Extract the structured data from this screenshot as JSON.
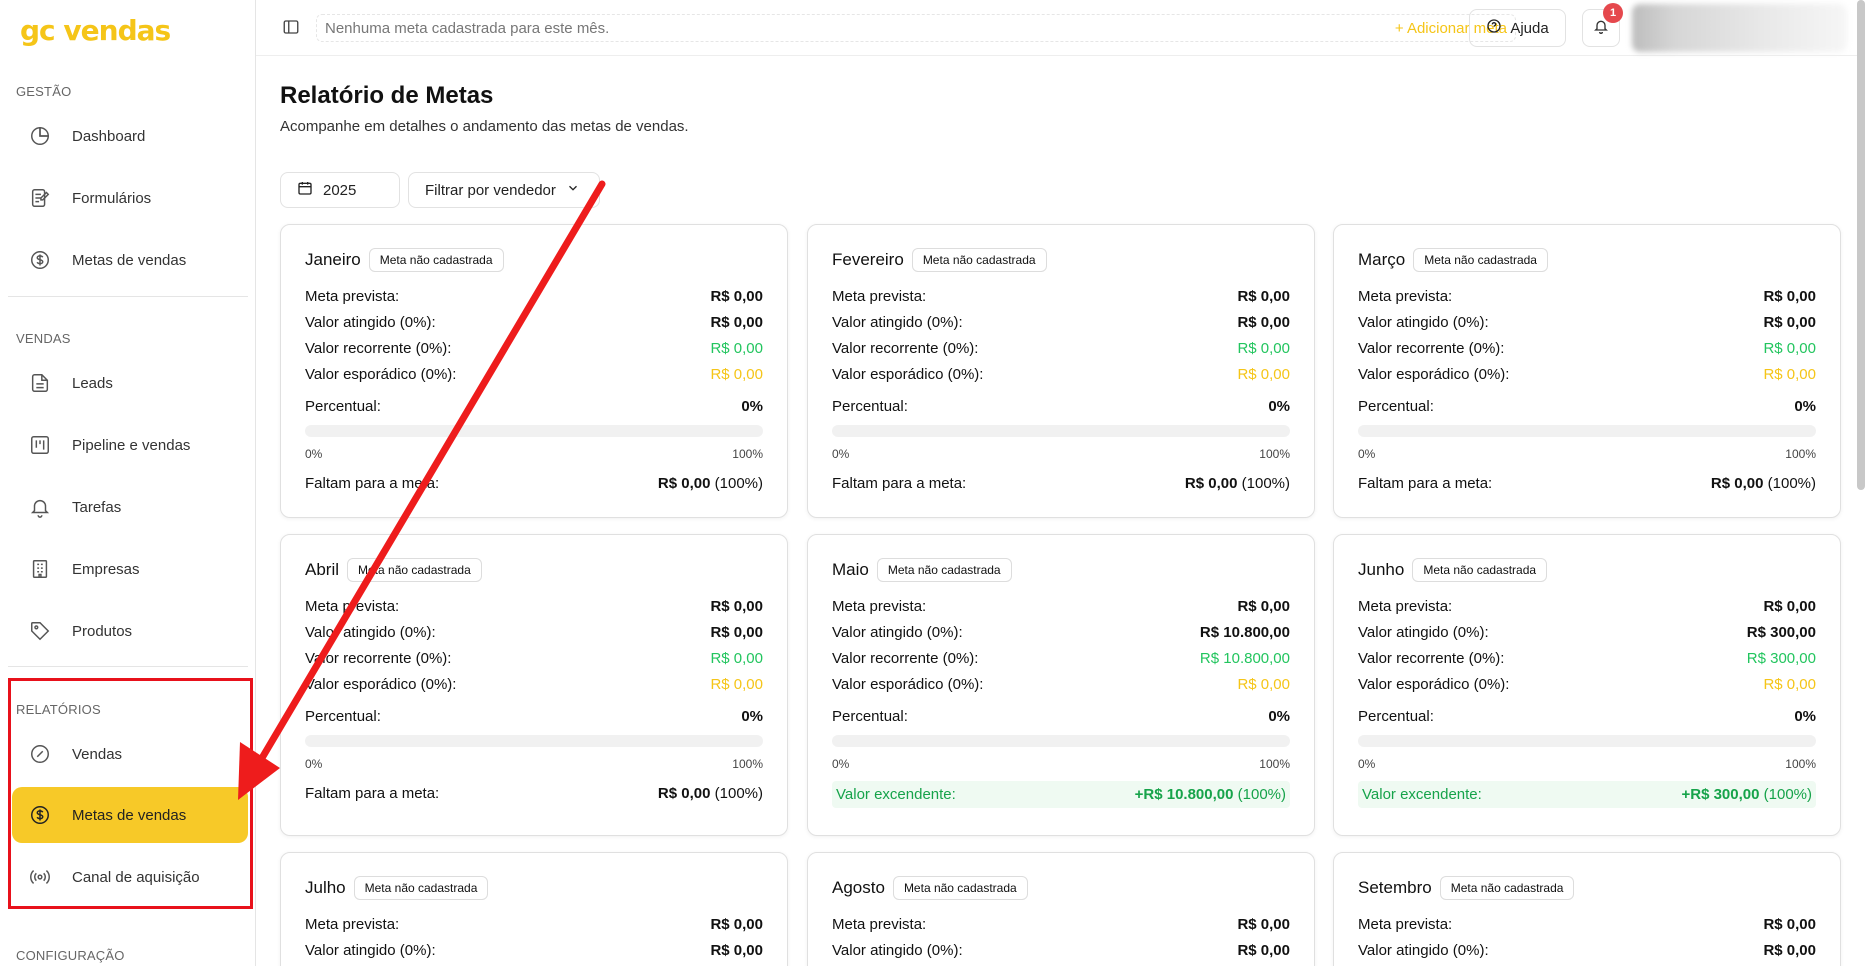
{
  "brand": "gc vendas",
  "sidebar": {
    "sections": [
      {
        "label": "GESTÃO"
      },
      {
        "label": "VENDAS"
      },
      {
        "label": "RELATÓRIOS"
      },
      {
        "label": "CONFIGURAÇÃO"
      }
    ],
    "items": [
      {
        "label": "Dashboard",
        "icon": "pie-chart-icon"
      },
      {
        "label": "Formulários",
        "icon": "form-icon"
      },
      {
        "label": "Metas de vendas",
        "icon": "dollar-circle-icon"
      },
      {
        "label": "Leads",
        "icon": "document-icon"
      },
      {
        "label": "Pipeline e vendas",
        "icon": "kanban-icon"
      },
      {
        "label": "Tarefas",
        "icon": "bell-icon"
      },
      {
        "label": "Empresas",
        "icon": "building-icon"
      },
      {
        "label": "Produtos",
        "icon": "tag-icon"
      },
      {
        "label": "Vendas",
        "icon": "gauge-icon"
      },
      {
        "label": "Metas de vendas",
        "icon": "dollar-circle-icon"
      },
      {
        "label": "Canal de aquisição",
        "icon": "broadcast-icon"
      }
    ]
  },
  "header": {
    "banner_message": "Nenhuma meta cadastrada para este mês.",
    "add_goal": "+ Adicionar meta",
    "help": "Ajuda",
    "notification_count": "1"
  },
  "page": {
    "title": "Relatório de Metas",
    "subtitle": "Acompanhe em detalhes o andamento das metas de vendas.",
    "year": "2025",
    "seller_filter": "Filtrar por vendedor"
  },
  "labels": {
    "badge": "Meta não cadastrada",
    "meta_prevista": "Meta prevista:",
    "valor_atingido": "Valor atingido (0%):",
    "valor_recorrente": "Valor recorrente (0%):",
    "valor_esporadico": "Valor esporádico (0%):",
    "percentual": "Percentual:",
    "bar_min": "0%",
    "bar_max": "100%",
    "faltam": "Faltam para a meta:",
    "excedente": "Valor excendente:"
  },
  "cards": [
    {
      "month": "Janeiro",
      "meta": "R$ 0,00",
      "atingido": "R$ 0,00",
      "recorrente": "R$ 0,00",
      "esporadico": "R$ 0,00",
      "percentual": "0%",
      "progress": 0,
      "remain_value": "R$ 0,00",
      "remain_pct": "(100%)"
    },
    {
      "month": "Fevereiro",
      "meta": "R$ 0,00",
      "atingido": "R$ 0,00",
      "recorrente": "R$ 0,00",
      "esporadico": "R$ 0,00",
      "percentual": "0%",
      "progress": 0,
      "remain_value": "R$ 0,00",
      "remain_pct": "(100%)"
    },
    {
      "month": "Março",
      "meta": "R$ 0,00",
      "atingido": "R$ 0,00",
      "recorrente": "R$ 0,00",
      "esporadico": "R$ 0,00",
      "percentual": "0%",
      "progress": 0,
      "remain_value": "R$ 0,00",
      "remain_pct": "(100%)"
    },
    {
      "month": "Abril",
      "meta": "R$ 0,00",
      "atingido": "R$ 0,00",
      "recorrente": "R$ 0,00",
      "esporadico": "R$ 0,00",
      "percentual": "0%",
      "progress": 0,
      "remain_value": "R$ 0,00",
      "remain_pct": "(100%)"
    },
    {
      "month": "Maio",
      "meta": "R$ 0,00",
      "atingido": "R$ 10.800,00",
      "recorrente": "R$ 10.800,00",
      "esporadico": "R$ 0,00",
      "percentual": "0%",
      "progress": 0,
      "excess_value": "+R$ 10.800,00",
      "excess_pct": "(100%)"
    },
    {
      "month": "Junho",
      "meta": "R$ 0,00",
      "atingido": "R$ 300,00",
      "recorrente": "R$ 300,00",
      "esporadico": "R$ 0,00",
      "percentual": "0%",
      "progress": 0,
      "excess_value": "+R$ 300,00",
      "excess_pct": "(100%)"
    },
    {
      "month": "Julho",
      "meta": "R$ 0,00",
      "atingido": "R$ 0,00"
    },
    {
      "month": "Agosto",
      "meta": "R$ 0,00",
      "atingido": "R$ 0,00"
    },
    {
      "month": "Setembro",
      "meta": "R$ 0,00",
      "atingido": "R$ 0,00"
    }
  ],
  "colors": {
    "accent": "#f7c928",
    "brand": "#f5c518",
    "green": "#22c55e",
    "annotation_red": "#e8111b"
  }
}
